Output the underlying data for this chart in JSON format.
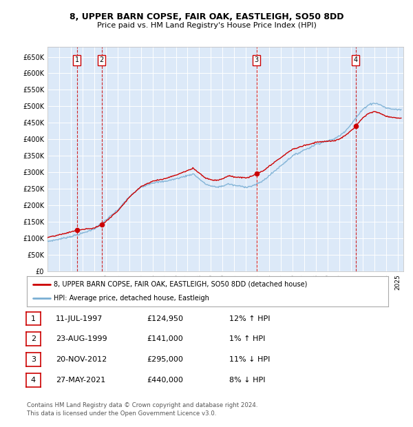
{
  "title1": "8, UPPER BARN COPSE, FAIR OAK, EASTLEIGH, SO50 8DD",
  "title2": "Price paid vs. HM Land Registry's House Price Index (HPI)",
  "ylabel_ticks": [
    "£0",
    "£50K",
    "£100K",
    "£150K",
    "£200K",
    "£250K",
    "£300K",
    "£350K",
    "£400K",
    "£450K",
    "£500K",
    "£550K",
    "£600K",
    "£650K"
  ],
  "ytick_vals": [
    0,
    50000,
    100000,
    150000,
    200000,
    250000,
    300000,
    350000,
    400000,
    450000,
    500000,
    550000,
    600000,
    650000
  ],
  "ylim": [
    0,
    680000
  ],
  "xlim_start": 1995.0,
  "xlim_end": 2025.5,
  "sale_dates": [
    1997.53,
    1999.65,
    2012.9,
    2021.41
  ],
  "sale_prices": [
    124950,
    141000,
    295000,
    440000
  ],
  "sale_labels": [
    "1",
    "2",
    "3",
    "4"
  ],
  "legend_label_red": "8, UPPER BARN COPSE, FAIR OAK, EASTLEIGH, SO50 8DD (detached house)",
  "legend_label_blue": "HPI: Average price, detached house, Eastleigh",
  "table_data": [
    [
      "1",
      "11-JUL-1997",
      "£124,950",
      "12% ↑ HPI"
    ],
    [
      "2",
      "23-AUG-1999",
      "£141,000",
      "1% ↑ HPI"
    ],
    [
      "3",
      "20-NOV-2012",
      "£295,000",
      "11% ↓ HPI"
    ],
    [
      "4",
      "27-MAY-2021",
      "£440,000",
      "8% ↓ HPI"
    ]
  ],
  "footnote": "Contains HM Land Registry data © Crown copyright and database right 2024.\nThis data is licensed under the Open Government Licence v3.0.",
  "bg_color": "#dce9f8",
  "grid_color": "#ffffff",
  "red_color": "#cc0000",
  "blue_color": "#7aafd4"
}
